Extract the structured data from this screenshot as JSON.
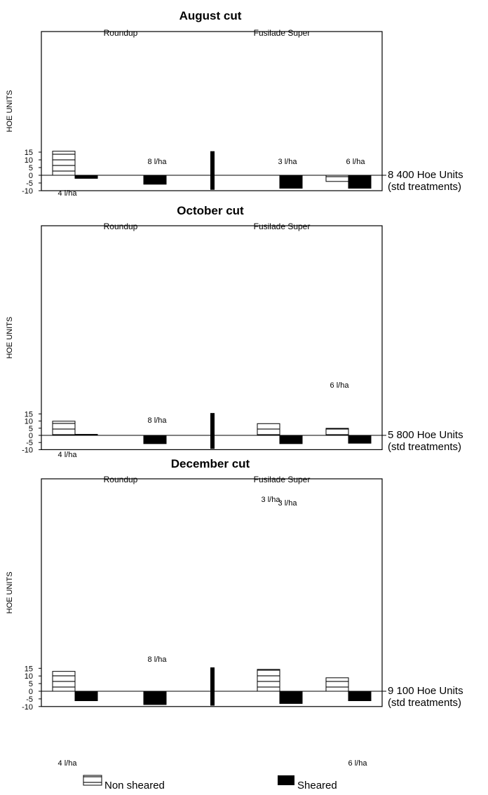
{
  "legend": {
    "non_sheared": "Non sheared",
    "sheared": "Sheared"
  },
  "colors": {
    "sheared": "#000000",
    "non_sheared_fill": "#ffffff",
    "hatch": "#000000"
  },
  "chart_data": [
    {
      "type": "bar",
      "title": "August cut",
      "ylabel": "HOE UNITS",
      "ylim": [
        -10,
        16
      ],
      "yticks": [
        15,
        10,
        5,
        0,
        -5,
        -10
      ],
      "groups": [
        "Roundup",
        "Fusilade Super"
      ],
      "categories": [
        "Roundup 4 l/ha",
        "Roundup 8 l/ha",
        "Fusilade Super 3 l/ha",
        "Fusilade Super 6 l/ha"
      ],
      "dose_labels": [
        "4 l/ha",
        "8 l/ha",
        "3 l/ha",
        "6 l/ha"
      ],
      "series": [
        {
          "name": "Non sheared",
          "values": [
            15.6,
            0,
            0,
            -4.0
          ]
        },
        {
          "name": "Sheared",
          "values": [
            -2.0,
            -5.8,
            -8.4,
            -8.4
          ]
        }
      ],
      "side_label": [
        "8 400 Hoe Units",
        "(std treatments)"
      ]
    },
    {
      "type": "bar",
      "title": "October cut",
      "ylabel": "HOE UNITS",
      "ylim": [
        -10,
        16
      ],
      "yticks": [
        15,
        10,
        5,
        0,
        -5,
        -10
      ],
      "groups": [
        "Roundup",
        "Fusilade Super"
      ],
      "categories": [
        "Roundup 4 l/ha",
        "Roundup 8 l/ha",
        "Fusilade Super 3 l/ha",
        "Fusilade Super 6 l/ha"
      ],
      "dose_labels": [
        "4 l/ha",
        "8 l/ha",
        "3 l/ha",
        "6 l/ha"
      ],
      "series": [
        {
          "name": "Non sheared",
          "values": [
            9.9,
            0,
            8.2,
            4.9
          ]
        },
        {
          "name": "Sheared",
          "values": [
            0.7,
            -5.8,
            -5.8,
            -5.5
          ]
        }
      ],
      "side_label": [
        "5 800 Hoe Units",
        "(std treatments)"
      ]
    },
    {
      "type": "bar",
      "title": "December cut",
      "ylabel": "HOE UNITS",
      "ylim": [
        -10,
        16
      ],
      "yticks": [
        15,
        10,
        5,
        0,
        -5,
        -10
      ],
      "groups": [
        "Roundup",
        "Fusilade Super"
      ],
      "categories": [
        "Roundup 4 l/ha",
        "Roundup 8 l/ha",
        "Fusilade Super 3 l/ha",
        "Fusilade Super 6 l/ha"
      ],
      "dose_labels": [
        "4 l/ha",
        "8 l/ha",
        "3 l/ha",
        "6 l/ha"
      ],
      "series": [
        {
          "name": "Non sheared",
          "values": [
            13.0,
            0,
            14.3,
            8.8
          ]
        },
        {
          "name": "Sheared",
          "values": [
            -6.2,
            -8.7,
            -8.0,
            -6.2
          ]
        }
      ],
      "side_label": [
        "9 100 Hoe Units",
        "(std treatments)"
      ]
    }
  ]
}
